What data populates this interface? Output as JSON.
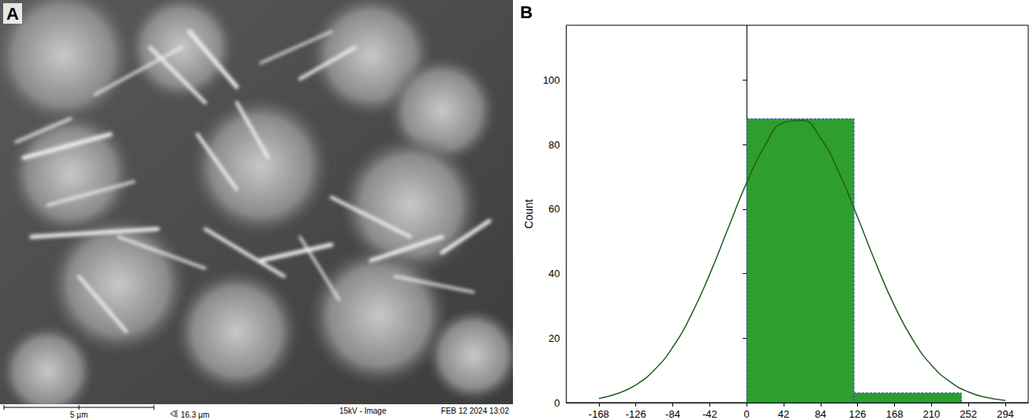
{
  "panel_a": {
    "label": "A",
    "scale_bar": "5 µm",
    "field_width": "16.3 µm",
    "settings": "15kV - Image",
    "timestamp": "FEB 12 2024 13:02"
  },
  "chart_data": {
    "panel": "B",
    "type": "histogram",
    "y_label": "Count",
    "bins": [
      0,
      122,
      244
    ],
    "counts": [
      88,
      3
    ],
    "color": "#2e9e2e",
    "fit_curve": {
      "color": "#1f5f1f",
      "x": [
        -168,
        -147,
        -126,
        -105,
        -84,
        -63,
        -42,
        -21,
        0,
        21,
        42,
        63,
        84,
        105,
        126,
        147,
        168,
        189,
        210,
        231,
        252,
        273,
        294
      ],
      "y": [
        1.3,
        2.8,
        5.5,
        10.1,
        17.2,
        27.2,
        39.8,
        54.1,
        68.2,
        79.8,
        86.8,
        87.5,
        82.0,
        71.3,
        57.5,
        43.1,
        30.0,
        19.4,
        11.6,
        6.5,
        3.3,
        1.6,
        0.7
      ]
    },
    "xlim": [
      -205,
      320
    ],
    "xticks": [
      -168,
      -126,
      -84,
      -42,
      0,
      42,
      84,
      126,
      168,
      210,
      252,
      294
    ],
    "ylim": [
      0,
      117
    ],
    "yticks": [
      0,
      20,
      40,
      60,
      80,
      100
    ],
    "grid": false
  }
}
